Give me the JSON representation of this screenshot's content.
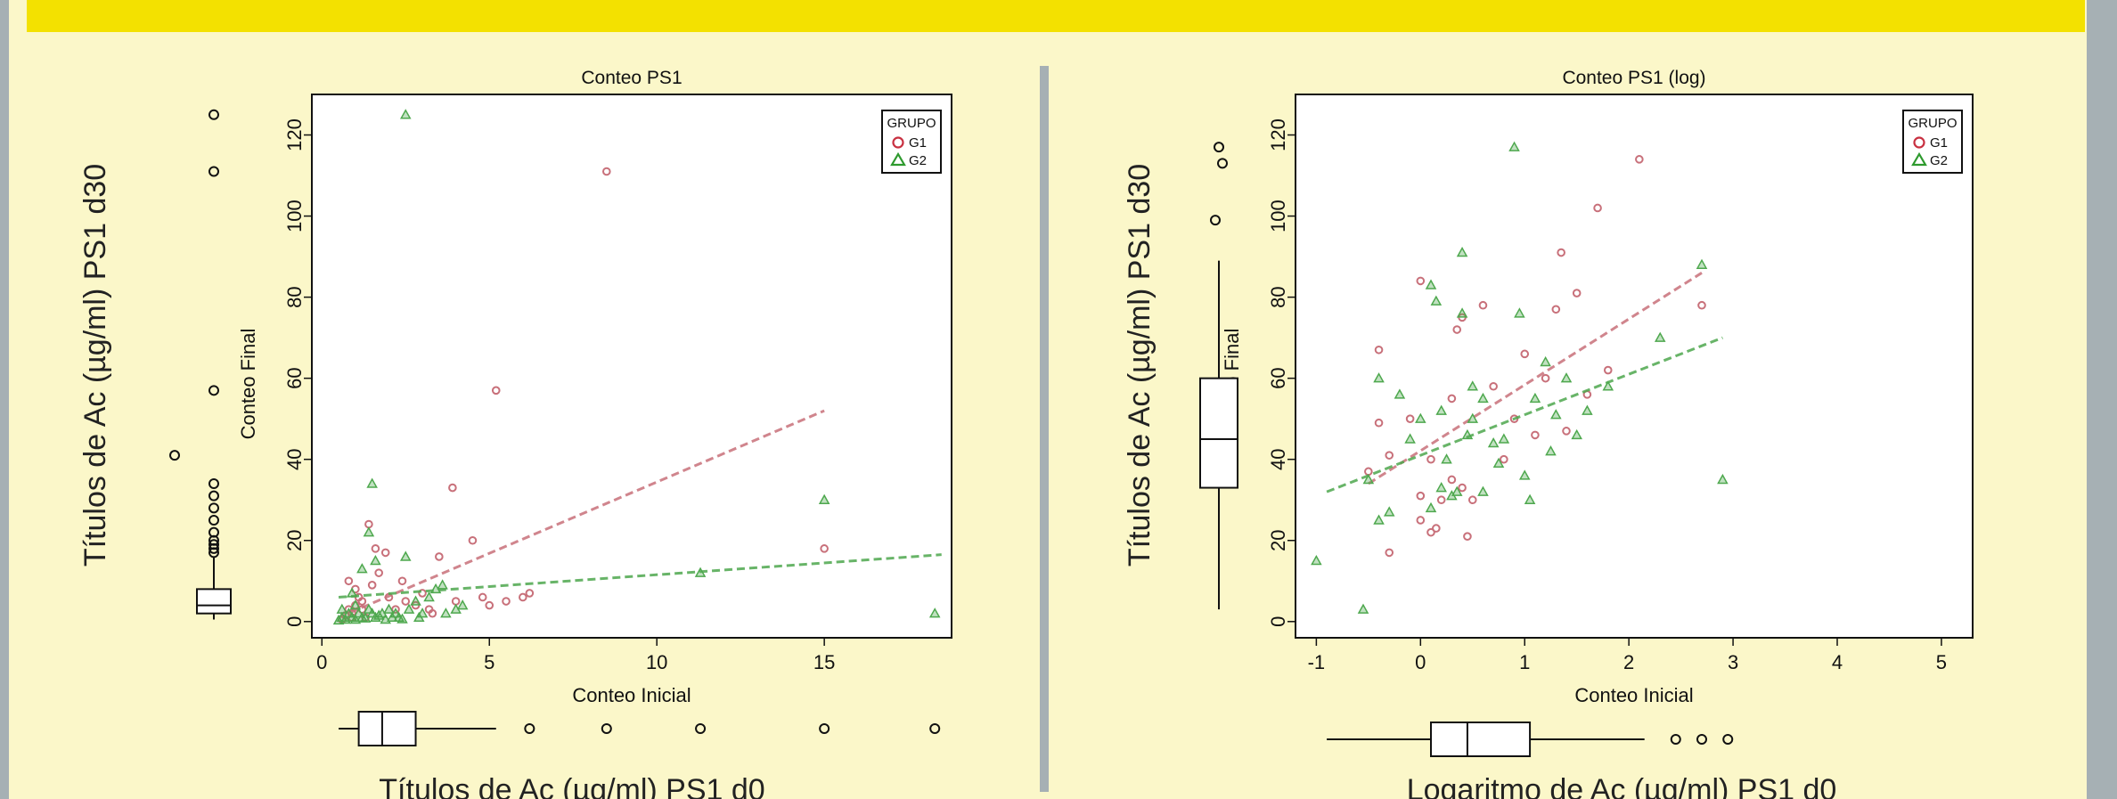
{
  "colors": {
    "background": "#fbf7c9",
    "header_bar": "#f3e100",
    "frame": "#a6b0b4",
    "g1": "#c8707a",
    "g2": "#4ea84e"
  },
  "chart_data": [
    {
      "type": "scatter",
      "title": "Conteo PS1",
      "xlabel": "Conteo Inicial",
      "ylabel": "Conteo Final",
      "outer_xlabel": "Títulos de Ac (µg/ml) PS1 d0",
      "outer_ylabel": "Títulos de Ac (µg/ml) PS1 d30",
      "xlim": [
        -0.3,
        18.8
      ],
      "ylim": [
        -4,
        130
      ],
      "xticks": [
        "0",
        "5",
        "10",
        "15"
      ],
      "yticks": [
        "0",
        "20",
        "40",
        "60",
        "80",
        "100",
        "120"
      ],
      "legend": {
        "title": "GRUPO",
        "position": "top-right",
        "entries": [
          "G1",
          "G2"
        ]
      },
      "series": [
        {
          "name": "G1",
          "marker": "circle",
          "points": [
            [
              0.6,
              0.5
            ],
            [
              0.7,
              1.5
            ],
            [
              0.8,
              3
            ],
            [
              0.9,
              2
            ],
            [
              1.0,
              4
            ],
            [
              1.1,
              6
            ],
            [
              1.2,
              3
            ],
            [
              1.3,
              1
            ],
            [
              0.8,
              10
            ],
            [
              1.0,
              8
            ],
            [
              1.5,
              9
            ],
            [
              1.7,
              12
            ],
            [
              1.4,
              24
            ],
            [
              1.6,
              18
            ],
            [
              2.0,
              6
            ],
            [
              2.2,
              3
            ],
            [
              2.5,
              5
            ],
            [
              2.8,
              4
            ],
            [
              3.0,
              7
            ],
            [
              3.5,
              16
            ],
            [
              3.2,
              3
            ],
            [
              3.9,
              33
            ],
            [
              4.0,
              5
            ],
            [
              4.5,
              20
            ],
            [
              4.8,
              6
            ],
            [
              5.2,
              57
            ],
            [
              5.0,
              4
            ],
            [
              5.5,
              5
            ],
            [
              6.0,
              6
            ],
            [
              6.2,
              7
            ],
            [
              8.5,
              111
            ],
            [
              15.0,
              18
            ],
            [
              1.9,
              17
            ],
            [
              2.4,
              10
            ],
            [
              1.2,
              5
            ],
            [
              0.9,
              1
            ],
            [
              3.3,
              2
            ]
          ],
          "trend": {
            "x": [
              0.5,
              15.0
            ],
            "y": [
              1,
              52
            ]
          }
        },
        {
          "name": "G2",
          "marker": "triangle",
          "points": [
            [
              0.5,
              0.3
            ],
            [
              0.6,
              1
            ],
            [
              0.7,
              0.5
            ],
            [
              0.8,
              2
            ],
            [
              0.9,
              1
            ],
            [
              1.0,
              0.5
            ],
            [
              1.1,
              2
            ],
            [
              1.2,
              1
            ],
            [
              1.3,
              0.8
            ],
            [
              1.4,
              3
            ],
            [
              1.5,
              2
            ],
            [
              1.6,
              1
            ],
            [
              1.7,
              1.5
            ],
            [
              1.8,
              2
            ],
            [
              1.9,
              0.5
            ],
            [
              2.0,
              3
            ],
            [
              2.1,
              1
            ],
            [
              2.2,
              2
            ],
            [
              2.3,
              1
            ],
            [
              2.4,
              0.6
            ],
            [
              2.6,
              3
            ],
            [
              2.8,
              5
            ],
            [
              3.0,
              2
            ],
            [
              3.2,
              6
            ],
            [
              3.4,
              8
            ],
            [
              3.6,
              9
            ],
            [
              4.0,
              3
            ],
            [
              4.2,
              4
            ],
            [
              1.5,
              34
            ],
            [
              2.5,
              125
            ],
            [
              2.5,
              16
            ],
            [
              0.9,
              7
            ],
            [
              1.2,
              13
            ],
            [
              1.4,
              22
            ],
            [
              1.6,
              15
            ],
            [
              1.0,
              4
            ],
            [
              11.3,
              12
            ],
            [
              15.0,
              30
            ],
            [
              18.3,
              2
            ],
            [
              0.6,
              3
            ],
            [
              2.9,
              1
            ],
            [
              3.7,
              2
            ]
          ],
          "trend": {
            "x": [
              0.5,
              18.5
            ],
            "y": [
              6,
              16.5
            ]
          }
        }
      ],
      "marginal_boxplots": {
        "x": {
          "lower_whisker": 0.5,
          "q1": 1.1,
          "median": 1.8,
          "q3": 2.8,
          "upper_whisker": 5.2,
          "outliers": [
            6.2,
            8.5,
            11.3,
            15.0,
            18.3
          ]
        },
        "y": {
          "lower_whisker": 0.5,
          "q1": 2,
          "median": 4,
          "q3": 8,
          "upper_whisker": 16,
          "outliers": [
            17,
            18,
            19,
            20,
            22,
            25,
            28,
            31,
            34,
            57,
            111,
            125
          ],
          "far_point": 41
        }
      }
    },
    {
      "type": "scatter",
      "title": "Conteo PS1 (log)",
      "xlabel": "Conteo Inicial",
      "ylabel": "Conteo Final",
      "outer_xlabel": "Logaritmo de Ac (µg/ml) PS1 d0",
      "outer_ylabel": "Títulos de Ac (µg/ml) PS1 d30",
      "xlim": [
        -1.2,
        5.3
      ],
      "ylim": [
        -4,
        130
      ],
      "xticks": [
        "-1",
        "0",
        "1",
        "2",
        "3",
        "4",
        "5"
      ],
      "yticks": [
        "0",
        "20",
        "40",
        "60",
        "80",
        "100",
        "120"
      ],
      "legend": {
        "title": "GRUPO",
        "position": "top-right",
        "entries": [
          "G1",
          "G2"
        ]
      },
      "series": [
        {
          "name": "G1",
          "marker": "circle",
          "points": [
            [
              -0.4,
              67
            ],
            [
              -0.4,
              49
            ],
            [
              -0.3,
              41
            ],
            [
              -0.3,
              17
            ],
            [
              -0.5,
              37
            ],
            [
              -0.1,
              50
            ],
            [
              0.0,
              84
            ],
            [
              0.0,
              25
            ],
            [
              0.1,
              40
            ],
            [
              0.1,
              22
            ],
            [
              0.15,
              23
            ],
            [
              0.2,
              30
            ],
            [
              0.3,
              55
            ],
            [
              0.35,
              72
            ],
            [
              0.4,
              75
            ],
            [
              0.4,
              33
            ],
            [
              0.45,
              21
            ],
            [
              0.5,
              30
            ],
            [
              0.6,
              78
            ],
            [
              0.7,
              58
            ],
            [
              0.8,
              40
            ],
            [
              0.9,
              50
            ],
            [
              1.0,
              66
            ],
            [
              1.1,
              46
            ],
            [
              1.2,
              60
            ],
            [
              1.3,
              77
            ],
            [
              1.35,
              91
            ],
            [
              1.4,
              47
            ],
            [
              1.5,
              81
            ],
            [
              1.6,
              56
            ],
            [
              1.7,
              102
            ],
            [
              1.8,
              62
            ],
            [
              2.1,
              114
            ],
            [
              2.7,
              78
            ],
            [
              0.0,
              31
            ],
            [
              0.3,
              35
            ]
          ],
          "trend": {
            "x": [
              -0.5,
              2.7
            ],
            "y": [
              34,
              86
            ]
          }
        },
        {
          "name": "G2",
          "marker": "triangle",
          "points": [
            [
              -1.0,
              15
            ],
            [
              -0.55,
              3
            ],
            [
              -0.5,
              35
            ],
            [
              -0.4,
              60
            ],
            [
              -0.3,
              27
            ],
            [
              -0.4,
              25
            ],
            [
              -0.2,
              56
            ],
            [
              -0.1,
              45
            ],
            [
              0.0,
              50
            ],
            [
              0.1,
              83
            ],
            [
              0.15,
              79
            ],
            [
              0.2,
              52
            ],
            [
              0.25,
              40
            ],
            [
              0.3,
              31
            ],
            [
              0.35,
              32
            ],
            [
              0.4,
              91
            ],
            [
              0.4,
              76
            ],
            [
              0.5,
              58
            ],
            [
              0.6,
              55
            ],
            [
              0.7,
              44
            ],
            [
              0.8,
              45
            ],
            [
              0.9,
              117
            ],
            [
              0.95,
              76
            ],
            [
              1.0,
              36
            ],
            [
              1.05,
              30
            ],
            [
              1.1,
              55
            ],
            [
              1.2,
              64
            ],
            [
              1.3,
              51
            ],
            [
              1.4,
              60
            ],
            [
              1.5,
              46
            ],
            [
              1.6,
              52
            ],
            [
              1.8,
              58
            ],
            [
              2.3,
              70
            ],
            [
              2.7,
              88
            ],
            [
              2.9,
              35
            ],
            [
              0.5,
              50
            ],
            [
              0.2,
              33
            ],
            [
              0.6,
              32
            ],
            [
              0.75,
              39
            ],
            [
              1.25,
              42
            ],
            [
              0.45,
              46
            ],
            [
              0.1,
              28
            ]
          ],
          "trend": {
            "x": [
              -0.9,
              2.9
            ],
            "y": [
              32,
              70
            ]
          }
        }
      ],
      "marginal_boxplots": {
        "x": {
          "lower_whisker": -0.9,
          "q1": 0.1,
          "median": 0.45,
          "q3": 1.05,
          "upper_whisker": 2.15,
          "outliers": [
            2.45,
            2.7,
            2.95
          ]
        },
        "y": {
          "lower_whisker": 3,
          "q1": 33,
          "median": 45,
          "q3": 60,
          "upper_whisker": 89,
          "outliers": [
            99,
            113,
            117
          ]
        }
      }
    }
  ]
}
